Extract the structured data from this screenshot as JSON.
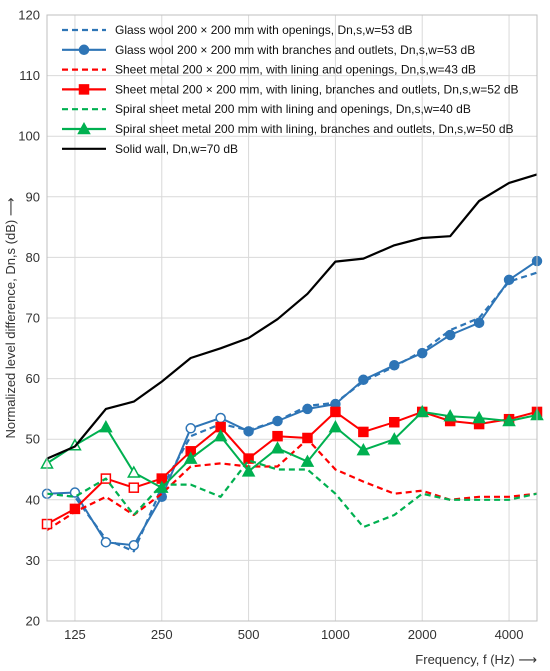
{
  "chart_data": {
    "type": "line",
    "xscale": "log",
    "x": [
      100,
      125,
      160,
      200,
      250,
      315,
      400,
      500,
      630,
      800,
      1000,
      1250,
      1600,
      2000,
      2500,
      3150,
      4000,
      5000
    ],
    "x_tick_values": [
      125,
      250,
      500,
      1000,
      2000,
      4000
    ],
    "x_tick_labels": [
      "125",
      "250",
      "500",
      "1000",
      "2000",
      "4000"
    ],
    "xlim": [
      100,
      5000
    ],
    "y_tick_values": [
      20,
      30,
      40,
      50,
      60,
      70,
      80,
      90,
      100,
      110,
      120
    ],
    "y_tick_labels": [
      "20",
      "30",
      "40",
      "50",
      "60",
      "70",
      "80",
      "90",
      "100",
      "110",
      "120"
    ],
    "ylim": [
      20,
      120
    ],
    "xlabel": "Frequency, f (Hz) ⟶",
    "ylabel": "Normalized level difference, Dn,s (dB) ⟶",
    "grid": true,
    "legend_position": "top-left",
    "series": [
      {
        "name": "Glass wool 200 × 200 mm with openings, Dn,s,w=53 dB",
        "color": "#2e75b6",
        "dash": true,
        "marker": "none",
        "values": [
          41,
          40.5,
          33.5,
          31.5,
          42,
          50.5,
          52.5,
          51.5,
          53,
          55.5,
          56,
          59.5,
          62,
          64.5,
          68,
          70,
          76,
          77.5
        ]
      },
      {
        "name": "Glass wool 200 × 200 mm with branches and outlets, Dn,s,w=53 dB",
        "color": "#2e75b6",
        "dash": false,
        "marker": "circle",
        "values": [
          41,
          41.2,
          33,
          32.5,
          40.5,
          51.8,
          53.5,
          51.3,
          53,
          55,
          55.8,
          59.8,
          62.2,
          64.2,
          67.2,
          69.2,
          76.3,
          79.4
        ],
        "hollow_marker_points": [
          0,
          1,
          2,
          3,
          5,
          6
        ]
      },
      {
        "name": "Sheet metal 200 × 200 mm, with lining and openings, Dn,s,w=43 dB",
        "color": "#ff0000",
        "dash": true,
        "marker": "none",
        "values": [
          35,
          38,
          40.5,
          37.5,
          41,
          45.5,
          46,
          45.5,
          45.5,
          50,
          45,
          43,
          41,
          41.5,
          40,
          40.5,
          40.5,
          41
        ]
      },
      {
        "name": "Sheet metal 200 × 200 mm, with lining, branches and outlets, Dn,s,w=52 dB",
        "color": "#ff0000",
        "dash": false,
        "marker": "square",
        "values": [
          36,
          38.5,
          43.5,
          42,
          43.5,
          48,
          52,
          46.8,
          50.5,
          50.2,
          54.5,
          51.2,
          52.8,
          54.5,
          53,
          52.5,
          53.3,
          54.5
        ],
        "hollow_marker_points": [
          0,
          2,
          3
        ]
      },
      {
        "name": "Spiral sheet metal 200 mm with lining and openings, Dn,s,w=40 dB",
        "color": "#00b050",
        "dash": true,
        "marker": "none",
        "values": [
          41,
          40.5,
          43.5,
          37.5,
          42.5,
          42.5,
          40.5,
          46.5,
          45,
          45,
          41,
          35.5,
          37.5,
          41,
          40,
          40,
          40,
          41
        ]
      },
      {
        "name": "Spiral sheet metal 200 mm with lining, branches and outlets, Dn,s,w=50 dB",
        "color": "#00b050",
        "dash": false,
        "marker": "triangle",
        "values": [
          46,
          49,
          52,
          44.5,
          42,
          46.8,
          50.5,
          44.7,
          48.5,
          46.3,
          52,
          48.2,
          50,
          54.5,
          53.8,
          53.5,
          53,
          54
        ],
        "hollow_marker_points": [
          0,
          1,
          3
        ]
      },
      {
        "name": "Solid wall, Dn,w=70 dB",
        "color": "#000000",
        "dash": false,
        "marker": "none",
        "values": [
          46.8,
          48.8,
          55,
          56.2,
          59.5,
          63.4,
          65,
          66.7,
          69.8,
          74,
          79.3,
          79.8,
          82,
          83.2,
          83.5,
          89.3,
          92.3,
          93.7
        ]
      }
    ]
  }
}
